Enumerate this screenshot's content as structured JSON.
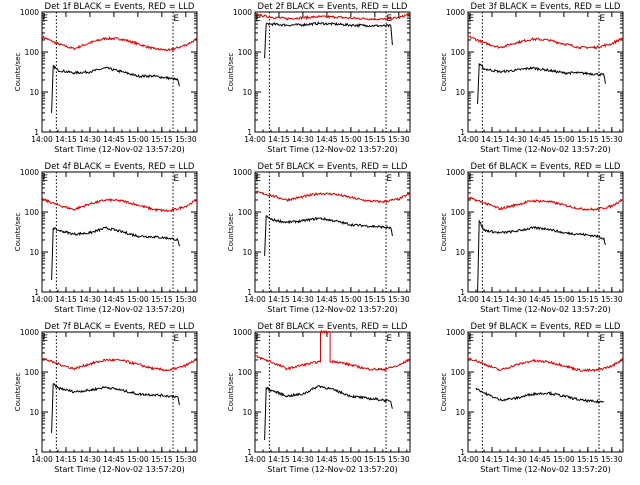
{
  "figure": {
    "x_title": "Start Time (12-Nov-02 13:57:20)",
    "y_title": "Counts/sec",
    "y_ticks": [
      "1",
      "10",
      "100",
      "1000"
    ],
    "x_ticks": [
      "14:00",
      "14:15",
      "14:30",
      "14:45",
      "15:00",
      "15:15",
      "15:30"
    ],
    "marker_E": "E",
    "colors": {
      "events": "#000000",
      "lld": "#dd0000",
      "axis": "#000000"
    }
  },
  "chart_data": [
    {
      "type": "line",
      "title": "Det 1f BLACK = Events, RED = LLD",
      "xlabel": "Start Time (12-Nov-02 13:57:20)",
      "ylabel": "Counts/sec",
      "yscale": "log",
      "ylim": [
        1,
        1000
      ],
      "xlim": [
        "14:00",
        "15:37"
      ],
      "vlines": [
        "14:09",
        "15:22"
      ],
      "E_markers": [
        "14:02",
        "15:24"
      ],
      "series": [
        {
          "name": "LLD",
          "color": "#dd0000",
          "x": [
            "14:00",
            "14:10",
            "14:20",
            "14:30",
            "14:40",
            "14:50",
            "15:00",
            "15:10",
            "15:20",
            "15:30",
            "15:37"
          ],
          "y": [
            240,
            160,
            120,
            170,
            220,
            210,
            160,
            120,
            110,
            150,
            210
          ]
        },
        {
          "name": "Events",
          "color": "#000000",
          "x": [
            "14:06",
            "14:07",
            "14:10",
            "14:20",
            "14:30",
            "14:40",
            "14:50",
            "15:00",
            "15:10",
            "15:20",
            "15:25",
            "15:26"
          ],
          "y": [
            3,
            45,
            35,
            30,
            32,
            40,
            32,
            25,
            25,
            22,
            20,
            14
          ]
        }
      ]
    },
    {
      "type": "line",
      "title": "Det 2f BLACK = Events, RED = LLD",
      "xlabel": "Start Time (12-Nov-02 13:57:20)",
      "ylabel": "Counts/sec",
      "yscale": "log",
      "ylim": [
        1,
        1000
      ],
      "xlim": [
        "14:00",
        "15:37"
      ],
      "vlines": [
        "14:09",
        "15:22"
      ],
      "E_markers": [
        "14:02",
        "15:24"
      ],
      "series": [
        {
          "name": "LLD",
          "color": "#dd0000",
          "x": [
            "14:00",
            "14:10",
            "14:20",
            "14:30",
            "14:40",
            "14:50",
            "15:00",
            "15:10",
            "15:20",
            "15:30",
            "15:37"
          ],
          "y": [
            850,
            750,
            680,
            720,
            760,
            750,
            700,
            680,
            660,
            720,
            900
          ]
        },
        {
          "name": "Events",
          "color": "#000000",
          "x": [
            "14:06",
            "14:07",
            "14:10",
            "14:20",
            "14:30",
            "14:40",
            "14:50",
            "15:00",
            "15:10",
            "15:20",
            "15:25",
            "15:26"
          ],
          "y": [
            70,
            500,
            500,
            470,
            480,
            520,
            500,
            470,
            460,
            450,
            450,
            150
          ]
        }
      ]
    },
    {
      "type": "line",
      "title": "Det 3f BLACK = Events, RED = LLD",
      "xlabel": "Start Time (12-Nov-02 13:57:20)",
      "ylabel": "Counts/sec",
      "yscale": "log",
      "ylim": [
        1,
        1000
      ],
      "xlim": [
        "14:00",
        "15:37"
      ],
      "vlines": [
        "14:09",
        "15:22"
      ],
      "E_markers": [
        "14:02",
        "15:24"
      ],
      "series": [
        {
          "name": "LLD",
          "color": "#dd0000",
          "x": [
            "14:00",
            "14:10",
            "14:20",
            "14:30",
            "14:40",
            "14:50",
            "15:00",
            "15:10",
            "15:20",
            "15:30",
            "15:37"
          ],
          "y": [
            250,
            170,
            130,
            170,
            210,
            200,
            160,
            130,
            130,
            160,
            230
          ]
        },
        {
          "name": "Events",
          "color": "#000000",
          "x": [
            "14:06",
            "14:07",
            "14:10",
            "14:20",
            "14:30",
            "14:40",
            "14:50",
            "15:00",
            "15:10",
            "15:20",
            "15:25",
            "15:26"
          ],
          "y": [
            5,
            50,
            38,
            32,
            35,
            40,
            35,
            30,
            30,
            28,
            27,
            16
          ]
        }
      ]
    },
    {
      "type": "line",
      "title": "Det 4f BLACK = Events, RED = LLD",
      "xlabel": "Start Time (12-Nov-02 13:57:20)",
      "ylabel": "Counts/sec",
      "yscale": "log",
      "ylim": [
        1,
        1000
      ],
      "xlim": [
        "14:00",
        "15:37"
      ],
      "vlines": [
        "14:09",
        "15:22"
      ],
      "E_markers": [
        "14:02",
        "15:24"
      ],
      "series": [
        {
          "name": "LLD",
          "color": "#dd0000",
          "x": [
            "14:00",
            "14:10",
            "14:20",
            "14:30",
            "14:40",
            "14:50",
            "15:00",
            "15:10",
            "15:20",
            "15:30",
            "15:37"
          ],
          "y": [
            210,
            150,
            115,
            160,
            200,
            190,
            150,
            115,
            105,
            140,
            200
          ]
        },
        {
          "name": "Events",
          "color": "#000000",
          "x": [
            "14:06",
            "14:07",
            "14:10",
            "14:20",
            "14:30",
            "14:40",
            "14:50",
            "15:00",
            "15:10",
            "15:20",
            "15:25",
            "15:26"
          ],
          "y": [
            2,
            40,
            35,
            28,
            30,
            40,
            32,
            25,
            24,
            22,
            20,
            14
          ]
        }
      ]
    },
    {
      "type": "line",
      "title": "Det 5f BLACK = Events, RED = LLD",
      "xlabel": "Start Time (12-Nov-02 13:57:20)",
      "ylabel": "Counts/sec",
      "yscale": "log",
      "ylim": [
        1,
        1000
      ],
      "xlim": [
        "14:00",
        "15:37"
      ],
      "vlines": [
        "14:09",
        "15:22"
      ],
      "E_markers": [
        "14:02",
        "15:24"
      ],
      "series": [
        {
          "name": "LLD",
          "color": "#dd0000",
          "x": [
            "14:00",
            "14:10",
            "14:20",
            "14:30",
            "14:40",
            "14:50",
            "15:00",
            "15:10",
            "15:20",
            "15:30",
            "15:37"
          ],
          "y": [
            320,
            260,
            200,
            240,
            290,
            280,
            230,
            190,
            180,
            210,
            290
          ]
        },
        {
          "name": "Events",
          "color": "#000000",
          "x": [
            "14:06",
            "14:07",
            "14:10",
            "14:20",
            "14:30",
            "14:40",
            "14:50",
            "15:00",
            "15:10",
            "15:20",
            "15:25",
            "15:26"
          ],
          "y": [
            8,
            80,
            65,
            55,
            60,
            70,
            60,
            48,
            45,
            42,
            40,
            25
          ]
        }
      ]
    },
    {
      "type": "line",
      "title": "Det 6f BLACK = Events, RED = LLD",
      "xlabel": "Start Time (12-Nov-02 13:57:20)",
      "ylabel": "Counts/sec",
      "yscale": "log",
      "ylim": [
        1,
        1000
      ],
      "xlim": [
        "14:00",
        "15:37"
      ],
      "vlines": [
        "14:09",
        "15:22"
      ],
      "E_markers": [
        "14:02",
        "15:24"
      ],
      "series": [
        {
          "name": "LLD",
          "color": "#dd0000",
          "x": [
            "14:00",
            "14:10",
            "14:20",
            "14:30",
            "14:40",
            "14:50",
            "15:00",
            "15:10",
            "15:20",
            "15:30",
            "15:37"
          ],
          "y": [
            230,
            170,
            120,
            150,
            190,
            185,
            150,
            120,
            115,
            140,
            210
          ]
        },
        {
          "name": "Events",
          "color": "#000000",
          "x": [
            "14:06",
            "14:07",
            "14:10",
            "14:20",
            "14:30",
            "14:40",
            "14:50",
            "15:00",
            "15:10",
            "15:20",
            "15:25",
            "15:26"
          ],
          "y": [
            1,
            60,
            35,
            30,
            33,
            40,
            38,
            30,
            28,
            25,
            22,
            15
          ]
        }
      ]
    },
    {
      "type": "line",
      "title": "Det 7f BLACK = Events, RED = LLD",
      "xlabel": "Start Time (12-Nov-02 13:57:20)",
      "ylabel": "Counts/sec",
      "yscale": "log",
      "ylim": [
        1,
        1000
      ],
      "xlim": [
        "14:00",
        "15:37"
      ],
      "vlines": [
        "14:09",
        "15:22"
      ],
      "E_markers": [
        "14:02",
        "15:24"
      ],
      "series": [
        {
          "name": "LLD",
          "color": "#dd0000",
          "x": [
            "14:00",
            "14:10",
            "14:20",
            "14:30",
            "14:40",
            "14:50",
            "15:00",
            "15:10",
            "15:20",
            "15:30",
            "15:37"
          ],
          "y": [
            220,
            160,
            120,
            160,
            200,
            195,
            155,
            120,
            110,
            145,
            210
          ]
        },
        {
          "name": "Events",
          "color": "#000000",
          "x": [
            "14:06",
            "14:07",
            "14:10",
            "14:20",
            "14:30",
            "14:40",
            "14:50",
            "15:00",
            "15:10",
            "15:20",
            "15:25",
            "15:26"
          ],
          "y": [
            3,
            50,
            40,
            32,
            35,
            42,
            35,
            28,
            27,
            25,
            24,
            15
          ]
        }
      ]
    },
    {
      "type": "line",
      "title": "Det 8f BLACK = Events, RED = LLD",
      "xlabel": "Start Time (12-Nov-02 13:57:20)",
      "ylabel": "Counts/sec",
      "yscale": "log",
      "ylim": [
        1,
        1000
      ],
      "xlim": [
        "14:00",
        "15:37"
      ],
      "vlines": [
        "14:09",
        "15:22"
      ],
      "E_markers": [
        "14:02",
        "15:24"
      ],
      "series": [
        {
          "name": "LLD",
          "color": "#dd0000",
          "x": [
            "14:00",
            "14:10",
            "14:20",
            "14:30",
            "14:40",
            "14:41",
            "14:41",
            "14:47",
            "14:47",
            "14:50",
            "15:00",
            "15:10",
            "15:20",
            "15:30",
            "15:37"
          ],
          "y": [
            250,
            180,
            120,
            150,
            180,
            180,
            1000,
            1000,
            180,
            185,
            150,
            120,
            115,
            145,
            210
          ]
        },
        {
          "name": "Events",
          "color": "#000000",
          "x": [
            "14:06",
            "14:07",
            "14:10",
            "14:20",
            "14:30",
            "14:40",
            "14:50",
            "15:00",
            "15:10",
            "15:20",
            "15:25",
            "15:26"
          ],
          "y": [
            2,
            40,
            35,
            25,
            28,
            45,
            35,
            25,
            22,
            20,
            18,
            12
          ]
        }
      ]
    },
    {
      "type": "line",
      "title": "Det 9f BLACK = Events, RED = LLD",
      "xlabel": "Start Time (12-Nov-02 13:57:20)",
      "ylabel": "Counts/sec",
      "yscale": "log",
      "ylim": [
        1,
        1000
      ],
      "xlim": [
        "14:00",
        "15:37"
      ],
      "vlines": [
        "14:09",
        "15:22"
      ],
      "E_markers": [
        "14:02",
        "15:24"
      ],
      "series": [
        {
          "name": "LLD",
          "color": "#dd0000",
          "x": [
            "14:00",
            "14:10",
            "14:20",
            "14:30",
            "14:40",
            "14:50",
            "15:00",
            "15:10",
            "15:20",
            "15:30",
            "15:37"
          ],
          "y": [
            230,
            160,
            110,
            150,
            190,
            180,
            145,
            110,
            110,
            140,
            210
          ]
        },
        {
          "name": "Events",
          "color": "#000000",
          "x": [
            "14:05",
            "14:10",
            "14:20",
            "14:30",
            "14:40",
            "14:50",
            "15:00",
            "15:10",
            "15:20",
            "15:25"
          ],
          "y": [
            40,
            30,
            20,
            22,
            28,
            30,
            25,
            20,
            18,
            18
          ]
        }
      ]
    }
  ]
}
